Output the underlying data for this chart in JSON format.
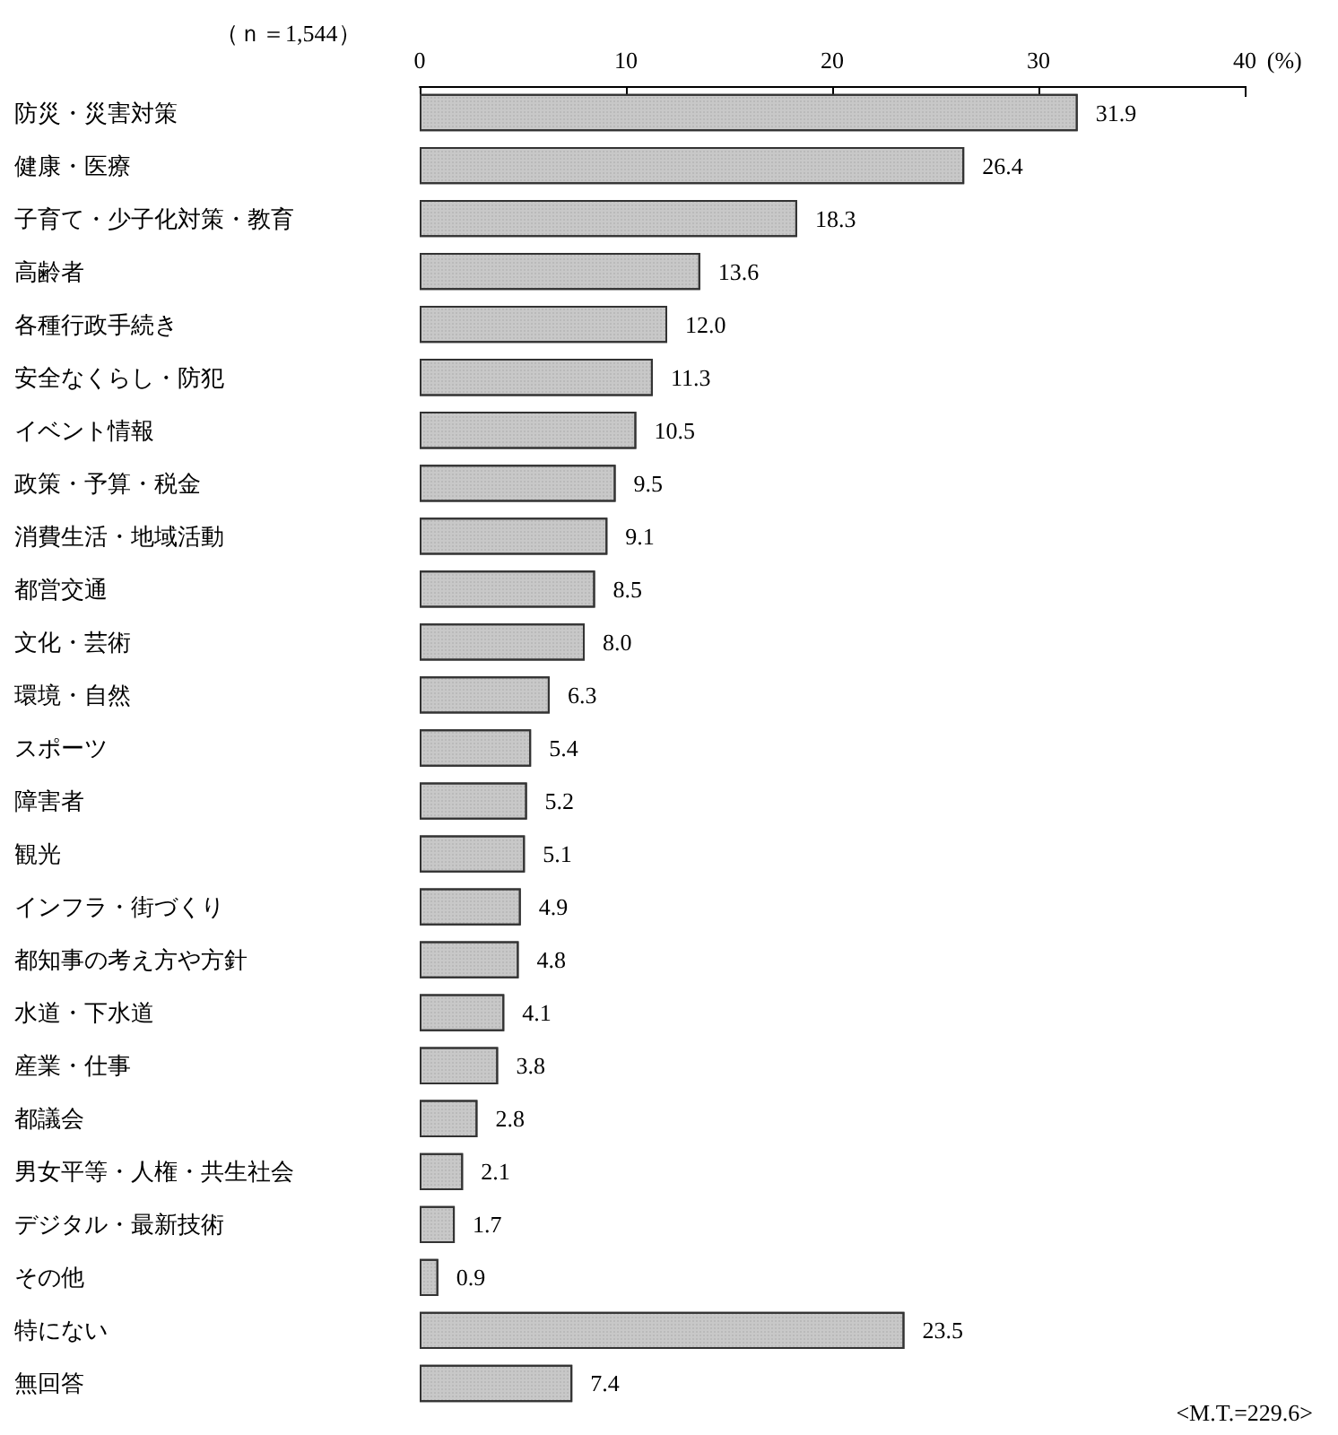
{
  "chart_data": {
    "type": "bar",
    "orientation": "horizontal",
    "xlabel": "(%)",
    "annotations": [
      "（ｎ＝1,544）",
      "<M.T.=229.6>"
    ],
    "categories": [
      "防災・災害対策",
      "健康・医療",
      "子育て・少子化対策・教育",
      "高齢者",
      "各種行政手続き",
      "安全なくらし・防犯",
      "イベント情報",
      "政策・予算・税金",
      "消費生活・地域活動",
      "都営交通",
      "文化・芸術",
      "環境・自然",
      "スポーツ",
      "障害者",
      "観光",
      "インフラ・街づくり",
      "都知事の考え方や方針",
      "水道・下水道",
      "産業・仕事",
      "都議会",
      "男女平等・人権・共生社会",
      "デジタル・最新技術",
      "その他",
      "特にない",
      "無回答"
    ],
    "values": [
      31.9,
      26.4,
      18.3,
      13.6,
      12.0,
      11.3,
      10.5,
      9.5,
      9.1,
      8.5,
      8.0,
      6.3,
      5.4,
      5.2,
      5.1,
      4.9,
      4.8,
      4.1,
      3.8,
      2.8,
      2.1,
      1.7,
      0.9,
      23.5,
      7.4
    ],
    "value_labels": [
      "31.9",
      "26.4",
      "18.3",
      "13.6",
      "12.0",
      "11.3",
      "10.5",
      "9.5",
      "9.1",
      "8.5",
      "8.0",
      "6.3",
      "5.4",
      "5.2",
      "5.1",
      "4.9",
      "4.8",
      "4.1",
      "3.8",
      "2.8",
      "2.1",
      "1.7",
      "0.9",
      "23.5",
      "7.4"
    ],
    "color": "#c8c8c8",
    "xlim": [
      0,
      40
    ],
    "xticks": [
      0,
      10,
      20,
      30,
      40
    ],
    "grid": false
  }
}
